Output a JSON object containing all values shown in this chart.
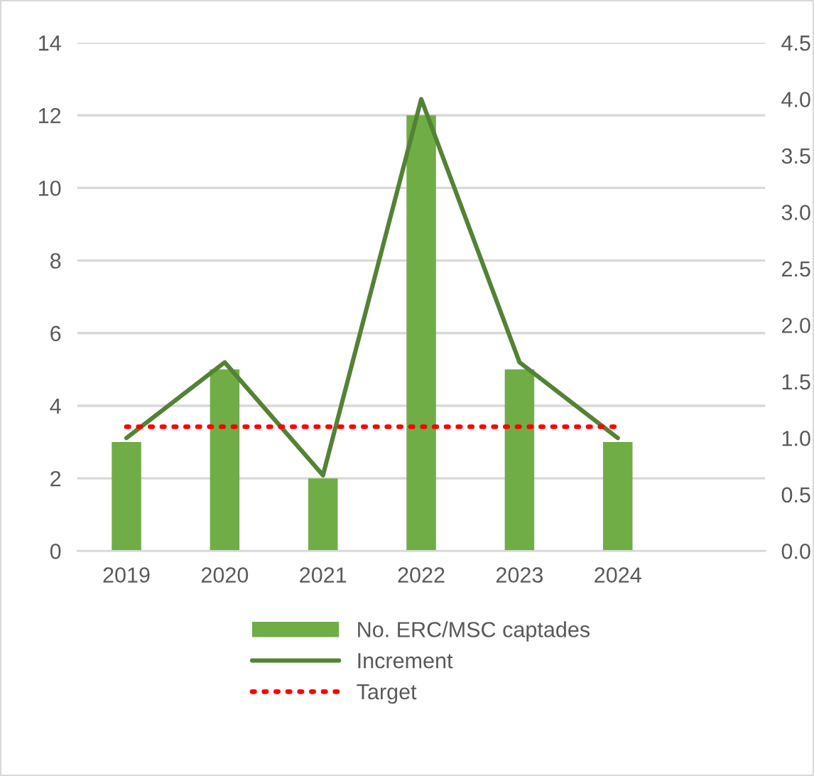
{
  "chart_data": {
    "type": "bar",
    "categories": [
      "2019",
      "2020",
      "2021",
      "2022",
      "2023",
      "2024",
      null
    ],
    "series": [
      {
        "name": "No. ERC/MSC captades",
        "color": "#70ad47",
        "values": [
          3,
          5,
          2,
          12,
          5,
          3,
          null
        ]
      },
      {
        "name": "Increment",
        "type": "line",
        "axis": "y2",
        "color": "#548235",
        "line_style": "solid",
        "values": [
          1.0,
          1.67,
          0.67,
          4.0,
          1.67,
          1.0,
          null
        ]
      },
      {
        "name": "Target",
        "type": "line",
        "axis": "y2",
        "color": "#ff0000",
        "line_style": "dotted",
        "values": [
          1.1,
          1.1,
          1.1,
          1.1,
          1.1,
          1.1,
          null
        ]
      }
    ],
    "ylim": [
      0,
      14
    ],
    "yticks": [
      0,
      2,
      4,
      6,
      8,
      10,
      12,
      14
    ],
    "y2lim": [
      0,
      4.5
    ],
    "y2ticks": [
      {
        "value": 0,
        "label": "0.0"
      },
      {
        "value": 0.5,
        "label": "0.5"
      },
      {
        "value": 1,
        "label": "1.0"
      },
      {
        "value": 1.5,
        "label": "1.5"
      },
      {
        "value": 2,
        "label": "2.0"
      },
      {
        "value": 2.5,
        "label": "2.5"
      },
      {
        "value": 3,
        "label": "3.0"
      },
      {
        "value": 3.5,
        "label": "3.5"
      },
      {
        "value": 4,
        "label": "4.0"
      },
      {
        "value": 4.5,
        "label": "4.5"
      }
    ],
    "grid": "y",
    "legend": "bottom",
    "marker": "none"
  }
}
